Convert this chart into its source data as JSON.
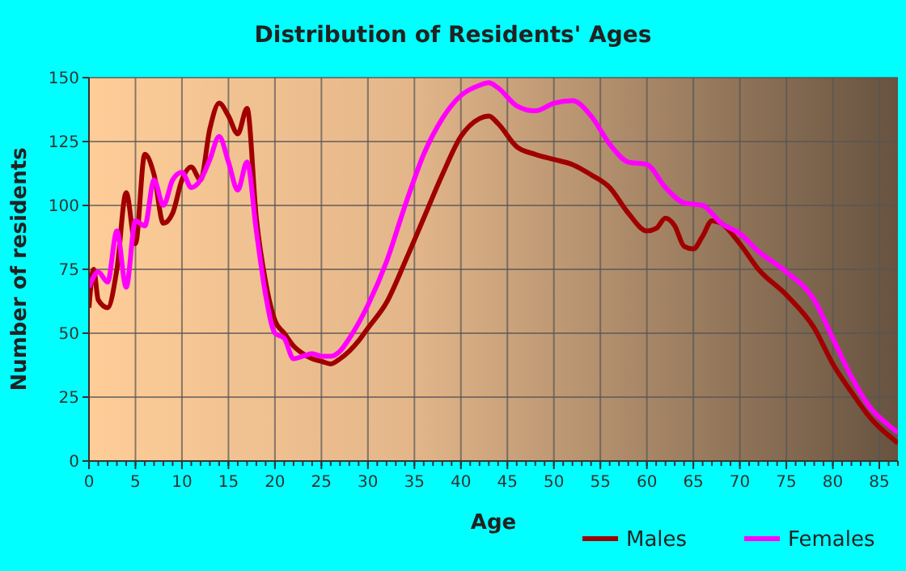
{
  "chart_data": {
    "type": "line",
    "title": "Distribution of Residents' Ages",
    "xlabel": "Age",
    "ylabel": "Number of residents",
    "xlim": [
      0,
      87
    ],
    "xticks": [
      0,
      5,
      10,
      15,
      20,
      25,
      30,
      35,
      40,
      45,
      50,
      55,
      60,
      65,
      70,
      75,
      80,
      85
    ],
    "ylim": [
      0,
      150
    ],
    "yticks": [
      0,
      25,
      50,
      75,
      100,
      125,
      150
    ],
    "grid": true,
    "legend": "bottom right",
    "series": [
      {
        "name": "Males",
        "color": "#a00000",
        "x": [
          0,
          0.5,
          1,
          2,
          3,
          4,
          5,
          6,
          7,
          8,
          9,
          10,
          11,
          12,
          13,
          14,
          15,
          16,
          17,
          18,
          19,
          20,
          21,
          22,
          23,
          24,
          25,
          26,
          27,
          28,
          29,
          30,
          32,
          34,
          36,
          38,
          40,
          42,
          43,
          44,
          46,
          48,
          50,
          52,
          54,
          56,
          58,
          60,
          61,
          62,
          63,
          64,
          65,
          66,
          67,
          68,
          70,
          72,
          75,
          78,
          80,
          82,
          84,
          87
        ],
        "values": [
          60,
          75,
          63,
          60,
          75,
          105,
          85,
          120,
          112,
          93,
          97,
          110,
          115,
          110,
          130,
          140,
          135,
          128,
          138,
          95,
          70,
          55,
          50,
          45,
          42,
          40,
          39,
          38,
          40,
          43,
          47,
          52,
          62,
          78,
          95,
          112,
          127,
          134,
          135,
          132,
          123,
          120,
          118,
          116,
          112,
          107,
          97,
          90,
          91,
          95,
          92,
          84,
          83,
          88,
          94,
          93,
          85,
          75,
          65,
          52,
          38,
          27,
          17,
          7
        ]
      },
      {
        "name": "Females",
        "color": "#ff00ff",
        "x": [
          0,
          1,
          2,
          3,
          4,
          5,
          6,
          7,
          8,
          9,
          10,
          11,
          12,
          13,
          14,
          15,
          16,
          17,
          18,
          19,
          20,
          21,
          22,
          23,
          24,
          25,
          26,
          27,
          28,
          29,
          30,
          32,
          34,
          36,
          38,
          40,
          42,
          43,
          44,
          46,
          48,
          50,
          52,
          54,
          56,
          58,
          60,
          62,
          64,
          66,
          68,
          70,
          72,
          75,
          78,
          80,
          82,
          84,
          86,
          87
        ],
        "values": [
          68,
          74,
          70,
          90,
          68,
          94,
          92,
          110,
          100,
          110,
          113,
          107,
          110,
          118,
          127,
          117,
          106,
          117,
          90,
          65,
          50,
          48,
          40,
          41,
          42,
          41,
          41,
          43,
          48,
          54,
          61,
          78,
          100,
          120,
          134,
          143,
          147,
          148,
          146,
          139,
          137,
          140,
          141,
          135,
          124,
          117,
          116,
          107,
          101,
          100,
          93,
          89,
          82,
          74,
          63,
          48,
          33,
          21,
          14,
          11
        ]
      }
    ]
  }
}
